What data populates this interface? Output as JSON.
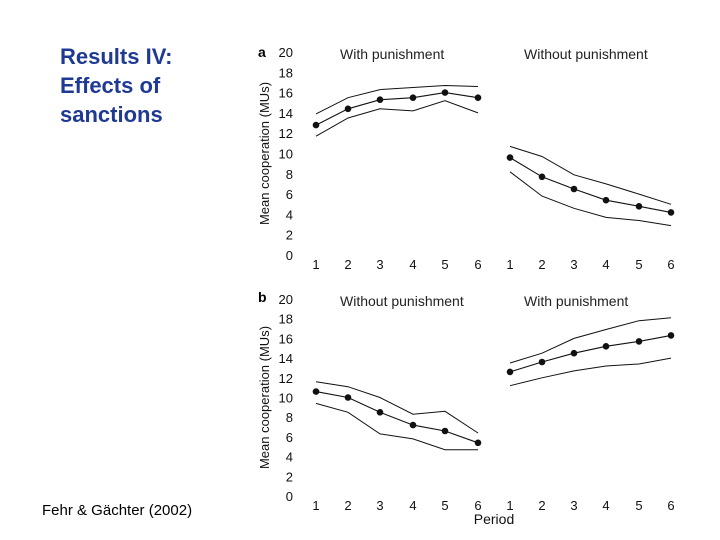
{
  "slide": {
    "title_lines": [
      "Results IV:",
      "Effects of",
      "sanctions"
    ],
    "citation": "Fehr & Gächter (2002)"
  },
  "chart_data": [
    {
      "type": "line",
      "panel_label": "a",
      "ylabel": "Mean cooperation (MUs)",
      "xlabel": "",
      "ylim": [
        0,
        20
      ],
      "yticks": [
        0,
        2,
        4,
        6,
        8,
        10,
        12,
        14,
        16,
        18,
        20
      ],
      "groups": [
        {
          "name": "With punishment",
          "x": [
            "1",
            "2",
            "3",
            "4",
            "5",
            "6"
          ],
          "series": [
            {
              "name": "mean",
              "values": [
                12.8,
                14.4,
                15.3,
                15.5,
                16.0,
                15.5
              ],
              "markers": true
            },
            {
              "name": "upper",
              "values": [
                13.9,
                15.5,
                16.3,
                16.5,
                16.7,
                16.6
              ],
              "markers": false
            },
            {
              "name": "lower",
              "values": [
                11.7,
                13.5,
                14.4,
                14.2,
                15.2,
                14.0
              ],
              "markers": false
            }
          ]
        },
        {
          "name": "Without punishment",
          "x": [
            "1",
            "2",
            "3",
            "4",
            "5",
            "6"
          ],
          "series": [
            {
              "name": "mean",
              "values": [
                9.6,
                7.7,
                6.5,
                5.4,
                4.8,
                4.2
              ],
              "markers": true
            },
            {
              "name": "upper",
              "values": [
                10.7,
                9.7,
                7.9,
                7.0,
                6.0,
                5.0
              ],
              "markers": false
            },
            {
              "name": "lower",
              "values": [
                8.2,
                5.8,
                4.6,
                3.7,
                3.4,
                2.9
              ],
              "markers": false
            }
          ]
        }
      ]
    },
    {
      "type": "line",
      "panel_label": "b",
      "ylabel": "Mean cooperation (MUs)",
      "xlabel": "Period",
      "ylim": [
        0,
        20
      ],
      "yticks": [
        0,
        2,
        4,
        6,
        8,
        10,
        12,
        14,
        16,
        18,
        20
      ],
      "groups": [
        {
          "name": "Without punishment",
          "x": [
            "1",
            "2",
            "3",
            "4",
            "5",
            "6"
          ],
          "series": [
            {
              "name": "mean",
              "values": [
                10.6,
                10.0,
                8.5,
                7.2,
                6.6,
                5.4
              ],
              "markers": true
            },
            {
              "name": "upper",
              "values": [
                11.6,
                11.1,
                10.0,
                8.3,
                8.6,
                6.4
              ],
              "markers": false
            },
            {
              "name": "lower",
              "values": [
                9.4,
                8.5,
                6.3,
                5.8,
                4.7,
                4.7
              ],
              "markers": false
            }
          ]
        },
        {
          "name": "With punishment",
          "x": [
            "1",
            "2",
            "3",
            "4",
            "5",
            "6"
          ],
          "series": [
            {
              "name": "mean",
              "values": [
                12.6,
                13.6,
                14.5,
                15.2,
                15.7,
                16.3
              ],
              "markers": true
            },
            {
              "name": "upper",
              "values": [
                13.5,
                14.5,
                16.0,
                16.9,
                17.8,
                18.1
              ],
              "markers": false
            },
            {
              "name": "lower",
              "values": [
                11.2,
                12.0,
                12.7,
                13.2,
                13.4,
                14.0
              ],
              "markers": false
            }
          ]
        }
      ]
    }
  ]
}
